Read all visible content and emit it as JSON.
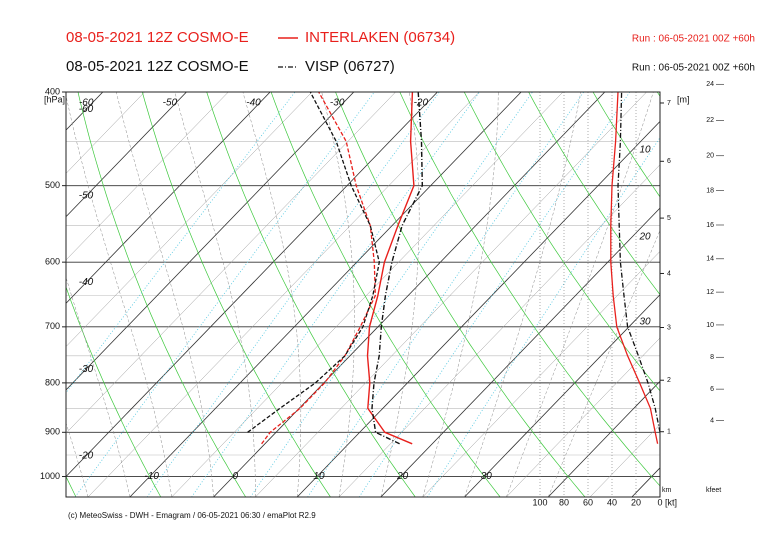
{
  "chart_data": {
    "type": "emagram",
    "series": [
      {
        "name": "INTERLAKEN (06734)",
        "model": "08-05-2021 12Z COSMO-E",
        "run": "Run : 06-05-2021 00Z +60h",
        "color": "#e8201c",
        "line_style": "solid",
        "temperature": [
          17.6,
          13.0,
          8.2,
          5.5,
          2.1,
          -1.0,
          -3.6,
          -6.7,
          -9.3,
          -12.0,
          -17.5,
          -23.0
        ],
        "dewpoint": [
          -0.4,
          -0.7,
          0.1,
          0.1,
          -0.6,
          -2.1,
          -3.9,
          -7.9,
          -12.6,
          -18.9,
          -25.2,
          -34.2
        ],
        "wind_speed": [
          2,
          4,
          8,
          17,
          27,
          36,
          39,
          41,
          41,
          40,
          37,
          35
        ]
      },
      {
        "name": "VISP (06727)",
        "model": "08-05-2021 12Z COSMO-E",
        "run": "Run : 06-05-2021 00Z +60h",
        "color": "#111111",
        "line_style": "dashdot",
        "temperature": [
          16.1,
          11.9,
          8.7,
          6.0,
          3.5,
          0.4,
          -2.7,
          -5.8,
          -8.8,
          -11.0,
          -16.2,
          -22.3
        ],
        "dewpoint": [
          null,
          -3.4,
          -2.3,
          -1.0,
          -0.6,
          -1.8,
          -4.2,
          -7.3,
          -12.6,
          -19.5,
          -26.4,
          -35.2
        ],
        "wind_speed": [
          null,
          0,
          4,
          10,
          18,
          27,
          30,
          33,
          34,
          35,
          33,
          32
        ]
      }
    ],
    "levels": [
      925,
      900,
      850,
      800,
      750,
      700,
      650,
      600,
      550,
      500,
      450,
      400
    ],
    "y_unit": "[hPa]",
    "ylim": [
      1050,
      400
    ],
    "log_y": true,
    "yticks": [
      400,
      500,
      600,
      700,
      800,
      900,
      1000
    ],
    "xlim": [
      -20,
      51
    ],
    "xticks_top": [
      -60,
      -50,
      -40,
      -30,
      -20
    ],
    "xticks_left": [
      -60,
      -50,
      -40,
      -30,
      -20
    ],
    "xticks_bottom": [
      -10,
      0,
      10,
      20,
      30
    ],
    "wind_lim": [
      100,
      0
    ],
    "wind_ticks": [
      100,
      80,
      60,
      40,
      20,
      0
    ],
    "wind_unit": "[kt]",
    "height_unit": "[m]",
    "km_label": "km",
    "km_ticks": [
      1,
      2,
      3,
      4,
      5,
      6,
      7
    ],
    "kfeet_label": "kfeet",
    "kfeet_ticks": [
      4,
      6,
      8,
      10,
      12,
      14,
      16,
      18,
      20,
      22,
      24
    ],
    "annotations": [
      "10",
      "20",
      "30"
    ],
    "footer": "(c) MeteoSwiss - DWH - Emagram / 06-05-2021 06:30 / emaPlot R2.9"
  }
}
